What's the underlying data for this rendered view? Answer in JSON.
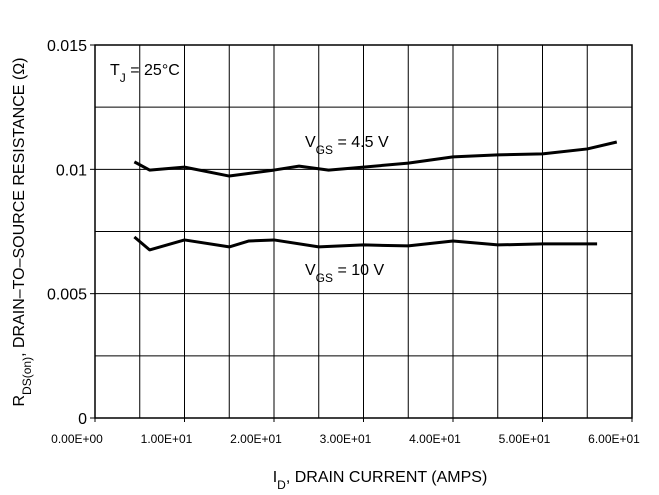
{
  "chart_data": {
    "type": "line",
    "annotation": [
      "T",
      "J",
      " = 25°C"
    ],
    "xlabel": [
      "I",
      "D",
      ", DRAIN CURRENT (AMPS)"
    ],
    "ylabel": [
      "R",
      "DS(on)",
      ", DRAIN–TO–SOURCE RESISTANCE (Ω)"
    ],
    "xlim": [
      0,
      60
    ],
    "ylim": [
      0,
      0.015
    ],
    "xticks": [
      {
        "value": 0,
        "label": "0.00E+00"
      },
      {
        "value": 10,
        "label": "1.00E+01"
      },
      {
        "value": 20,
        "label": "2.00E+01"
      },
      {
        "value": 30,
        "label": "3.00E+01"
      },
      {
        "value": 40,
        "label": "4.00E+01"
      },
      {
        "value": 50,
        "label": "5.00E+01"
      },
      {
        "value": 60,
        "label": "6.00E+01"
      }
    ],
    "yticks": [
      0,
      0.005,
      0.01,
      0.015
    ],
    "xgrid": [
      0,
      5,
      10,
      15,
      20,
      25,
      30,
      35,
      40,
      45,
      50,
      55,
      60
    ],
    "ygrid": [
      0,
      0.0025,
      0.005,
      0.0075,
      0.01,
      0.0125,
      0.015
    ],
    "series": [
      {
        "name": [
          "V",
          "GS",
          " = 4.5 V"
        ],
        "color": "#000000",
        "x": [
          4.4,
          6.1,
          10,
          15,
          20,
          22.8,
          26.1,
          30,
          35,
          40,
          45,
          50,
          55,
          58.3
        ],
        "values": [
          0.0103,
          0.00997,
          0.01009,
          0.00973,
          0.00997,
          0.01013,
          0.00997,
          0.01009,
          0.01025,
          0.0105,
          0.01058,
          0.01062,
          0.01082,
          0.0111
        ]
      },
      {
        "name": [
          "V",
          "GS",
          " = 10 V"
        ],
        "color": "#000000",
        "x": [
          4.4,
          6.1,
          10,
          15,
          17.2,
          20,
          25,
          30,
          35,
          40,
          45,
          50,
          56.1
        ],
        "values": [
          0.00728,
          0.00676,
          0.00716,
          0.00688,
          0.00712,
          0.00716,
          0.00688,
          0.00696,
          0.00692,
          0.00712,
          0.00696,
          0.007,
          0.007
        ]
      }
    ]
  }
}
